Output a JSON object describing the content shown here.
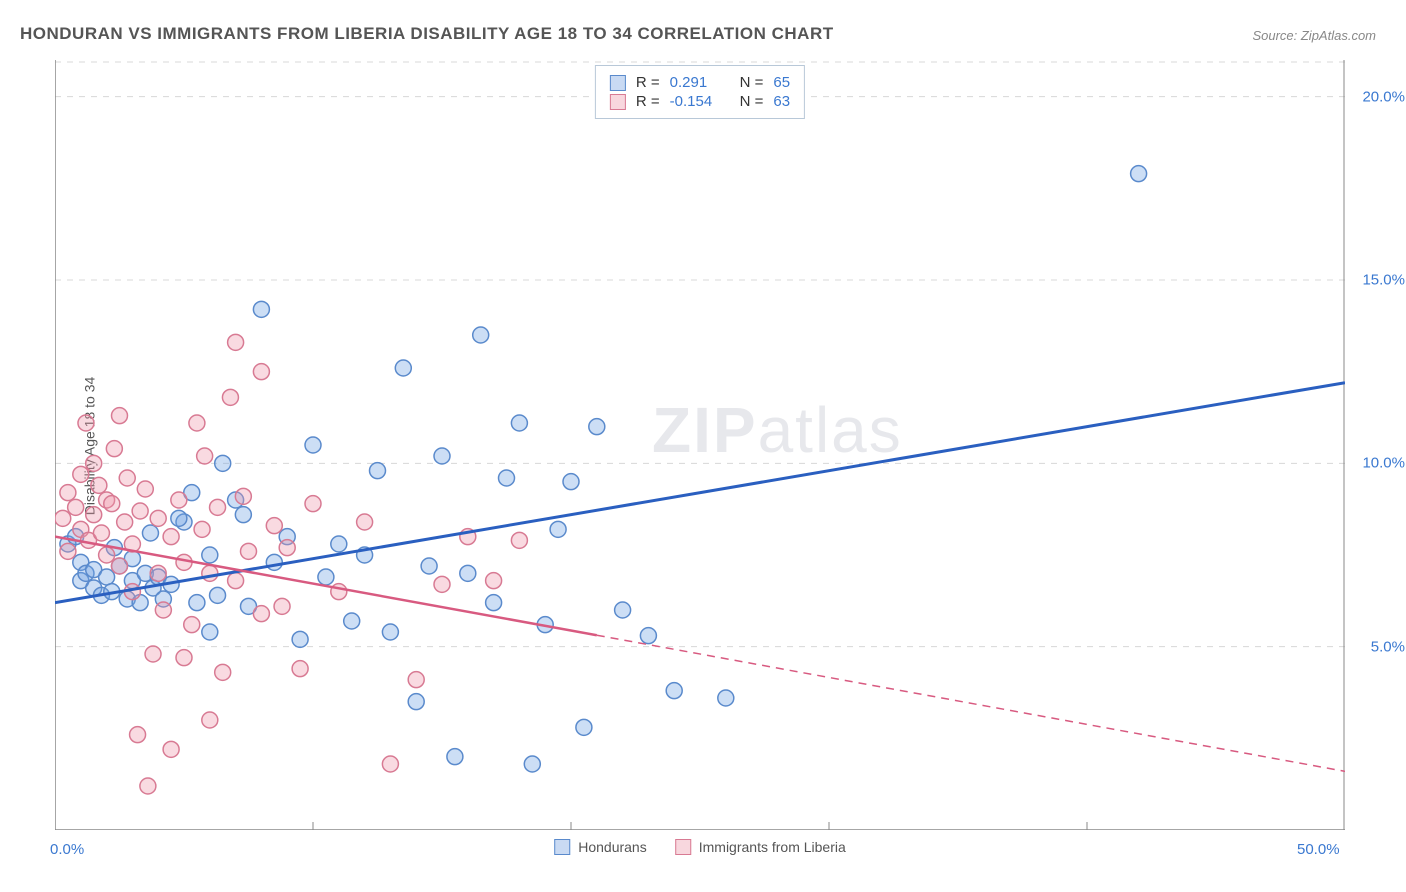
{
  "title": "HONDURAN VS IMMIGRANTS FROM LIBERIA DISABILITY AGE 18 TO 34 CORRELATION CHART",
  "source": "Source: ZipAtlas.com",
  "ylabel": "Disability Age 18 to 34",
  "watermark_a": "ZIP",
  "watermark_b": "atlas",
  "chart": {
    "type": "scatter",
    "xlim": [
      0,
      50
    ],
    "ylim": [
      0,
      21
    ],
    "yticks": [
      {
        "v": 5.0,
        "label": "5.0%"
      },
      {
        "v": 10.0,
        "label": "10.0%"
      },
      {
        "v": 15.0,
        "label": "15.0%"
      },
      {
        "v": 20.0,
        "label": "20.0%"
      }
    ],
    "xticks": [
      {
        "v": 0.0,
        "label": "0.0%"
      },
      {
        "v": 50.0,
        "label": "50.0%"
      }
    ],
    "xminor": [
      10,
      20,
      30,
      40
    ],
    "grid_color": "#d8d8d8",
    "grid_dash": "6,6",
    "axis_color": "#888",
    "background_color": "#ffffff",
    "marker_radius": 8,
    "marker_stroke_width": 1.5,
    "series": [
      {
        "name": "Hondurans",
        "color_fill": "rgba(110,160,225,0.35)",
        "color_stroke": "#5a8acc",
        "r": "0.291",
        "n": "65",
        "trend": {
          "x1": 0,
          "y1": 6.2,
          "x2": 50,
          "y2": 12.2,
          "color": "#2a5fc0",
          "width": 3,
          "dash_after_x": null
        },
        "points": [
          [
            0.5,
            7.8
          ],
          [
            0.8,
            8.0
          ],
          [
            1.0,
            6.8
          ],
          [
            1.0,
            7.3
          ],
          [
            1.2,
            7.0
          ],
          [
            1.5,
            6.6
          ],
          [
            1.5,
            7.1
          ],
          [
            1.8,
            6.4
          ],
          [
            2.0,
            6.9
          ],
          [
            2.2,
            6.5
          ],
          [
            2.5,
            7.2
          ],
          [
            2.8,
            6.3
          ],
          [
            3.0,
            6.8
          ],
          [
            3.0,
            7.4
          ],
          [
            3.3,
            6.2
          ],
          [
            3.5,
            7.0
          ],
          [
            3.8,
            6.6
          ],
          [
            4.0,
            6.9
          ],
          [
            4.2,
            6.3
          ],
          [
            4.5,
            6.7
          ],
          [
            5.0,
            8.4
          ],
          [
            5.5,
            6.2
          ],
          [
            6.0,
            7.5
          ],
          [
            6.0,
            5.4
          ],
          [
            6.5,
            10.0
          ],
          [
            7.0,
            9.0
          ],
          [
            7.5,
            6.1
          ],
          [
            8.0,
            14.2
          ],
          [
            8.5,
            7.3
          ],
          [
            9.0,
            8.0
          ],
          [
            9.5,
            5.2
          ],
          [
            10.0,
            10.5
          ],
          [
            10.5,
            6.9
          ],
          [
            11.0,
            7.8
          ],
          [
            11.5,
            5.7
          ],
          [
            12.0,
            7.5
          ],
          [
            12.5,
            9.8
          ],
          [
            13.0,
            5.4
          ],
          [
            13.5,
            12.6
          ],
          [
            14.0,
            3.5
          ],
          [
            14.5,
            7.2
          ],
          [
            15.0,
            10.2
          ],
          [
            15.5,
            2.0
          ],
          [
            16.0,
            7.0
          ],
          [
            16.5,
            13.5
          ],
          [
            17.0,
            6.2
          ],
          [
            17.5,
            9.6
          ],
          [
            18.0,
            11.1
          ],
          [
            18.5,
            1.8
          ],
          [
            19.0,
            5.6
          ],
          [
            19.5,
            8.2
          ],
          [
            20.0,
            9.5
          ],
          [
            20.5,
            2.8
          ],
          [
            21.0,
            11.0
          ],
          [
            22.0,
            6.0
          ],
          [
            23.0,
            5.3
          ],
          [
            24.0,
            3.8
          ],
          [
            26.0,
            3.6
          ],
          [
            42.0,
            17.9
          ],
          [
            4.8,
            8.5
          ],
          [
            5.3,
            9.2
          ],
          [
            6.3,
            6.4
          ],
          [
            7.3,
            8.6
          ],
          [
            3.7,
            8.1
          ],
          [
            2.3,
            7.7
          ]
        ]
      },
      {
        "name": "Immigrants from Liberia",
        "color_fill": "rgba(238,150,170,0.35)",
        "color_stroke": "#d87a93",
        "r": "-0.154",
        "n": "63",
        "trend": {
          "x1": 0,
          "y1": 8.0,
          "x2": 50,
          "y2": 1.6,
          "color": "#d85a80",
          "width": 2.5,
          "dash_after_x": 21
        },
        "points": [
          [
            0.3,
            8.5
          ],
          [
            0.5,
            9.2
          ],
          [
            0.5,
            7.6
          ],
          [
            0.8,
            8.8
          ],
          [
            1.0,
            8.2
          ],
          [
            1.0,
            9.7
          ],
          [
            1.2,
            11.1
          ],
          [
            1.3,
            7.9
          ],
          [
            1.5,
            8.6
          ],
          [
            1.5,
            10.0
          ],
          [
            1.7,
            9.4
          ],
          [
            1.8,
            8.1
          ],
          [
            2.0,
            9.0
          ],
          [
            2.0,
            7.5
          ],
          [
            2.2,
            8.9
          ],
          [
            2.3,
            10.4
          ],
          [
            2.5,
            7.2
          ],
          [
            2.5,
            11.3
          ],
          [
            2.7,
            8.4
          ],
          [
            2.8,
            9.6
          ],
          [
            3.0,
            7.8
          ],
          [
            3.0,
            6.5
          ],
          [
            3.2,
            2.6
          ],
          [
            3.3,
            8.7
          ],
          [
            3.5,
            9.3
          ],
          [
            3.6,
            1.2
          ],
          [
            3.8,
            4.8
          ],
          [
            4.0,
            7.0
          ],
          [
            4.0,
            8.5
          ],
          [
            4.2,
            6.0
          ],
          [
            4.5,
            2.2
          ],
          [
            4.5,
            8.0
          ],
          [
            4.8,
            9.0
          ],
          [
            5.0,
            7.3
          ],
          [
            5.0,
            4.7
          ],
          [
            5.3,
            5.6
          ],
          [
            5.5,
            11.1
          ],
          [
            5.7,
            8.2
          ],
          [
            6.0,
            7.0
          ],
          [
            6.0,
            3.0
          ],
          [
            6.3,
            8.8
          ],
          [
            6.5,
            4.3
          ],
          [
            7.0,
            13.3
          ],
          [
            7.0,
            6.8
          ],
          [
            7.3,
            9.1
          ],
          [
            7.5,
            7.6
          ],
          [
            8.0,
            12.5
          ],
          [
            8.0,
            5.9
          ],
          [
            8.5,
            8.3
          ],
          [
            8.8,
            6.1
          ],
          [
            9.0,
            7.7
          ],
          [
            9.5,
            4.4
          ],
          [
            10.0,
            8.9
          ],
          [
            11.0,
            6.5
          ],
          [
            12.0,
            8.4
          ],
          [
            13.0,
            1.8
          ],
          [
            14.0,
            4.1
          ],
          [
            15.0,
            6.7
          ],
          [
            16.0,
            8.0
          ],
          [
            17.0,
            6.8
          ],
          [
            18.0,
            7.9
          ],
          [
            5.8,
            10.2
          ],
          [
            6.8,
            11.8
          ]
        ]
      }
    ]
  },
  "legend_bottom": [
    {
      "label": "Hondurans",
      "class": "blue"
    },
    {
      "label": "Immigrants from Liberia",
      "class": "pink"
    }
  ]
}
